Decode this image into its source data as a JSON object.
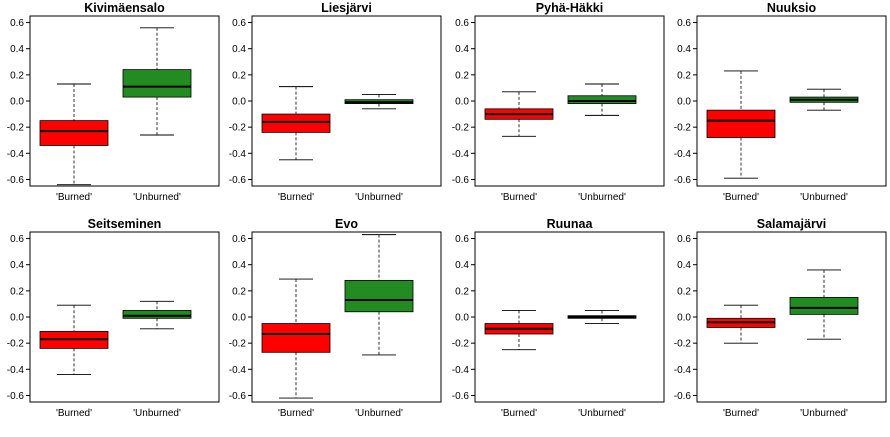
{
  "colors": {
    "burned": "#ff0000",
    "unburned": "#228b22",
    "median": "#000000",
    "whisker": "#000000",
    "frame": "#000000"
  },
  "chart_data": [
    {
      "type": "boxplot",
      "title": "Kivimäensalo",
      "categories": [
        "'Burned'",
        "'Unburned'"
      ],
      "ylim": [
        -0.65,
        0.65
      ],
      "yticks": [
        "-0.6",
        "-0.4",
        "-0.2",
        "0.0",
        "0.2",
        "0.4",
        "0.6"
      ],
      "boxes": [
        {
          "min": -0.64,
          "q1": -0.34,
          "median": -0.23,
          "q3": -0.15,
          "max": 0.13
        },
        {
          "min": -0.26,
          "q1": 0.03,
          "median": 0.11,
          "q3": 0.24,
          "max": 0.56
        }
      ]
    },
    {
      "type": "boxplot",
      "title": "Liesjärvi",
      "categories": [
        "'Burned'",
        "'Unburned'"
      ],
      "ylim": [
        -0.65,
        0.65
      ],
      "yticks": [
        "-0.6",
        "-0.4",
        "-0.2",
        "0.0",
        "0.2",
        "0.4",
        "0.6"
      ],
      "boxes": [
        {
          "min": -0.45,
          "q1": -0.24,
          "median": -0.16,
          "q3": -0.1,
          "max": 0.11
        },
        {
          "min": -0.06,
          "q1": -0.02,
          "median": -0.01,
          "q3": 0.01,
          "max": 0.05
        }
      ]
    },
    {
      "type": "boxplot",
      "title": "Pyhä-Häkki",
      "categories": [
        "'Burned'",
        "'Unburned'"
      ],
      "ylim": [
        -0.65,
        0.65
      ],
      "yticks": [
        "-0.6",
        "-0.4",
        "-0.2",
        "0.0",
        "0.2",
        "0.4",
        "0.6"
      ],
      "boxes": [
        {
          "min": -0.27,
          "q1": -0.14,
          "median": -0.1,
          "q3": -0.06,
          "max": 0.07
        },
        {
          "min": -0.11,
          "q1": -0.02,
          "median": 0.0,
          "q3": 0.04,
          "max": 0.13
        }
      ]
    },
    {
      "type": "boxplot",
      "title": "Nuuksio",
      "categories": [
        "'Burned'",
        "'Unburned'"
      ],
      "ylim": [
        -0.65,
        0.65
      ],
      "yticks": [
        "-0.6",
        "-0.4",
        "-0.2",
        "0.0",
        "0.2",
        "0.4",
        "0.6"
      ],
      "boxes": [
        {
          "min": -0.59,
          "q1": -0.28,
          "median": -0.15,
          "q3": -0.07,
          "max": 0.23
        },
        {
          "min": -0.07,
          "q1": -0.01,
          "median": 0.01,
          "q3": 0.03,
          "max": 0.09
        }
      ]
    },
    {
      "type": "boxplot",
      "title": "Seitseminen",
      "categories": [
        "'Burned'",
        "'Unburned'"
      ],
      "ylim": [
        -0.65,
        0.65
      ],
      "yticks": [
        "-0.6",
        "-0.4",
        "-0.2",
        "0.0",
        "0.2",
        "0.4",
        "0.6"
      ],
      "boxes": [
        {
          "min": -0.44,
          "q1": -0.24,
          "median": -0.17,
          "q3": -0.11,
          "max": 0.09
        },
        {
          "min": -0.09,
          "q1": -0.01,
          "median": 0.01,
          "q3": 0.05,
          "max": 0.12
        }
      ]
    },
    {
      "type": "boxplot",
      "title": "Evo",
      "categories": [
        "'Burned'",
        "'Unburned'"
      ],
      "ylim": [
        -0.65,
        0.65
      ],
      "yticks": [
        "-0.6",
        "-0.4",
        "-0.2",
        "0.0",
        "0.2",
        "0.4",
        "0.6"
      ],
      "boxes": [
        {
          "min": -0.62,
          "q1": -0.27,
          "median": -0.13,
          "q3": -0.05,
          "max": 0.29
        },
        {
          "min": -0.29,
          "q1": 0.04,
          "median": 0.13,
          "q3": 0.28,
          "max": 0.63
        }
      ]
    },
    {
      "type": "boxplot",
      "title": "Ruunaa",
      "categories": [
        "'Burned'",
        "'Unburned'"
      ],
      "ylim": [
        -0.65,
        0.65
      ],
      "yticks": [
        "-0.6",
        "-0.4",
        "-0.2",
        "0.0",
        "0.2",
        "0.4",
        "0.6"
      ],
      "boxes": [
        {
          "min": -0.25,
          "q1": -0.13,
          "median": -0.09,
          "q3": -0.05,
          "max": 0.05
        },
        {
          "min": -0.05,
          "q1": -0.01,
          "median": 0.0,
          "q3": 0.01,
          "max": 0.05
        }
      ]
    },
    {
      "type": "boxplot",
      "title": "Salamajärvi",
      "categories": [
        "'Burned'",
        "'Unburned'"
      ],
      "ylim": [
        -0.65,
        0.65
      ],
      "yticks": [
        "-0.6",
        "-0.4",
        "-0.2",
        "0.0",
        "0.2",
        "0.4",
        "0.6"
      ],
      "boxes": [
        {
          "min": -0.2,
          "q1": -0.08,
          "median": -0.04,
          "q3": -0.01,
          "max": 0.09
        },
        {
          "min": -0.17,
          "q1": 0.02,
          "median": 0.07,
          "q3": 0.15,
          "max": 0.36
        }
      ]
    }
  ]
}
